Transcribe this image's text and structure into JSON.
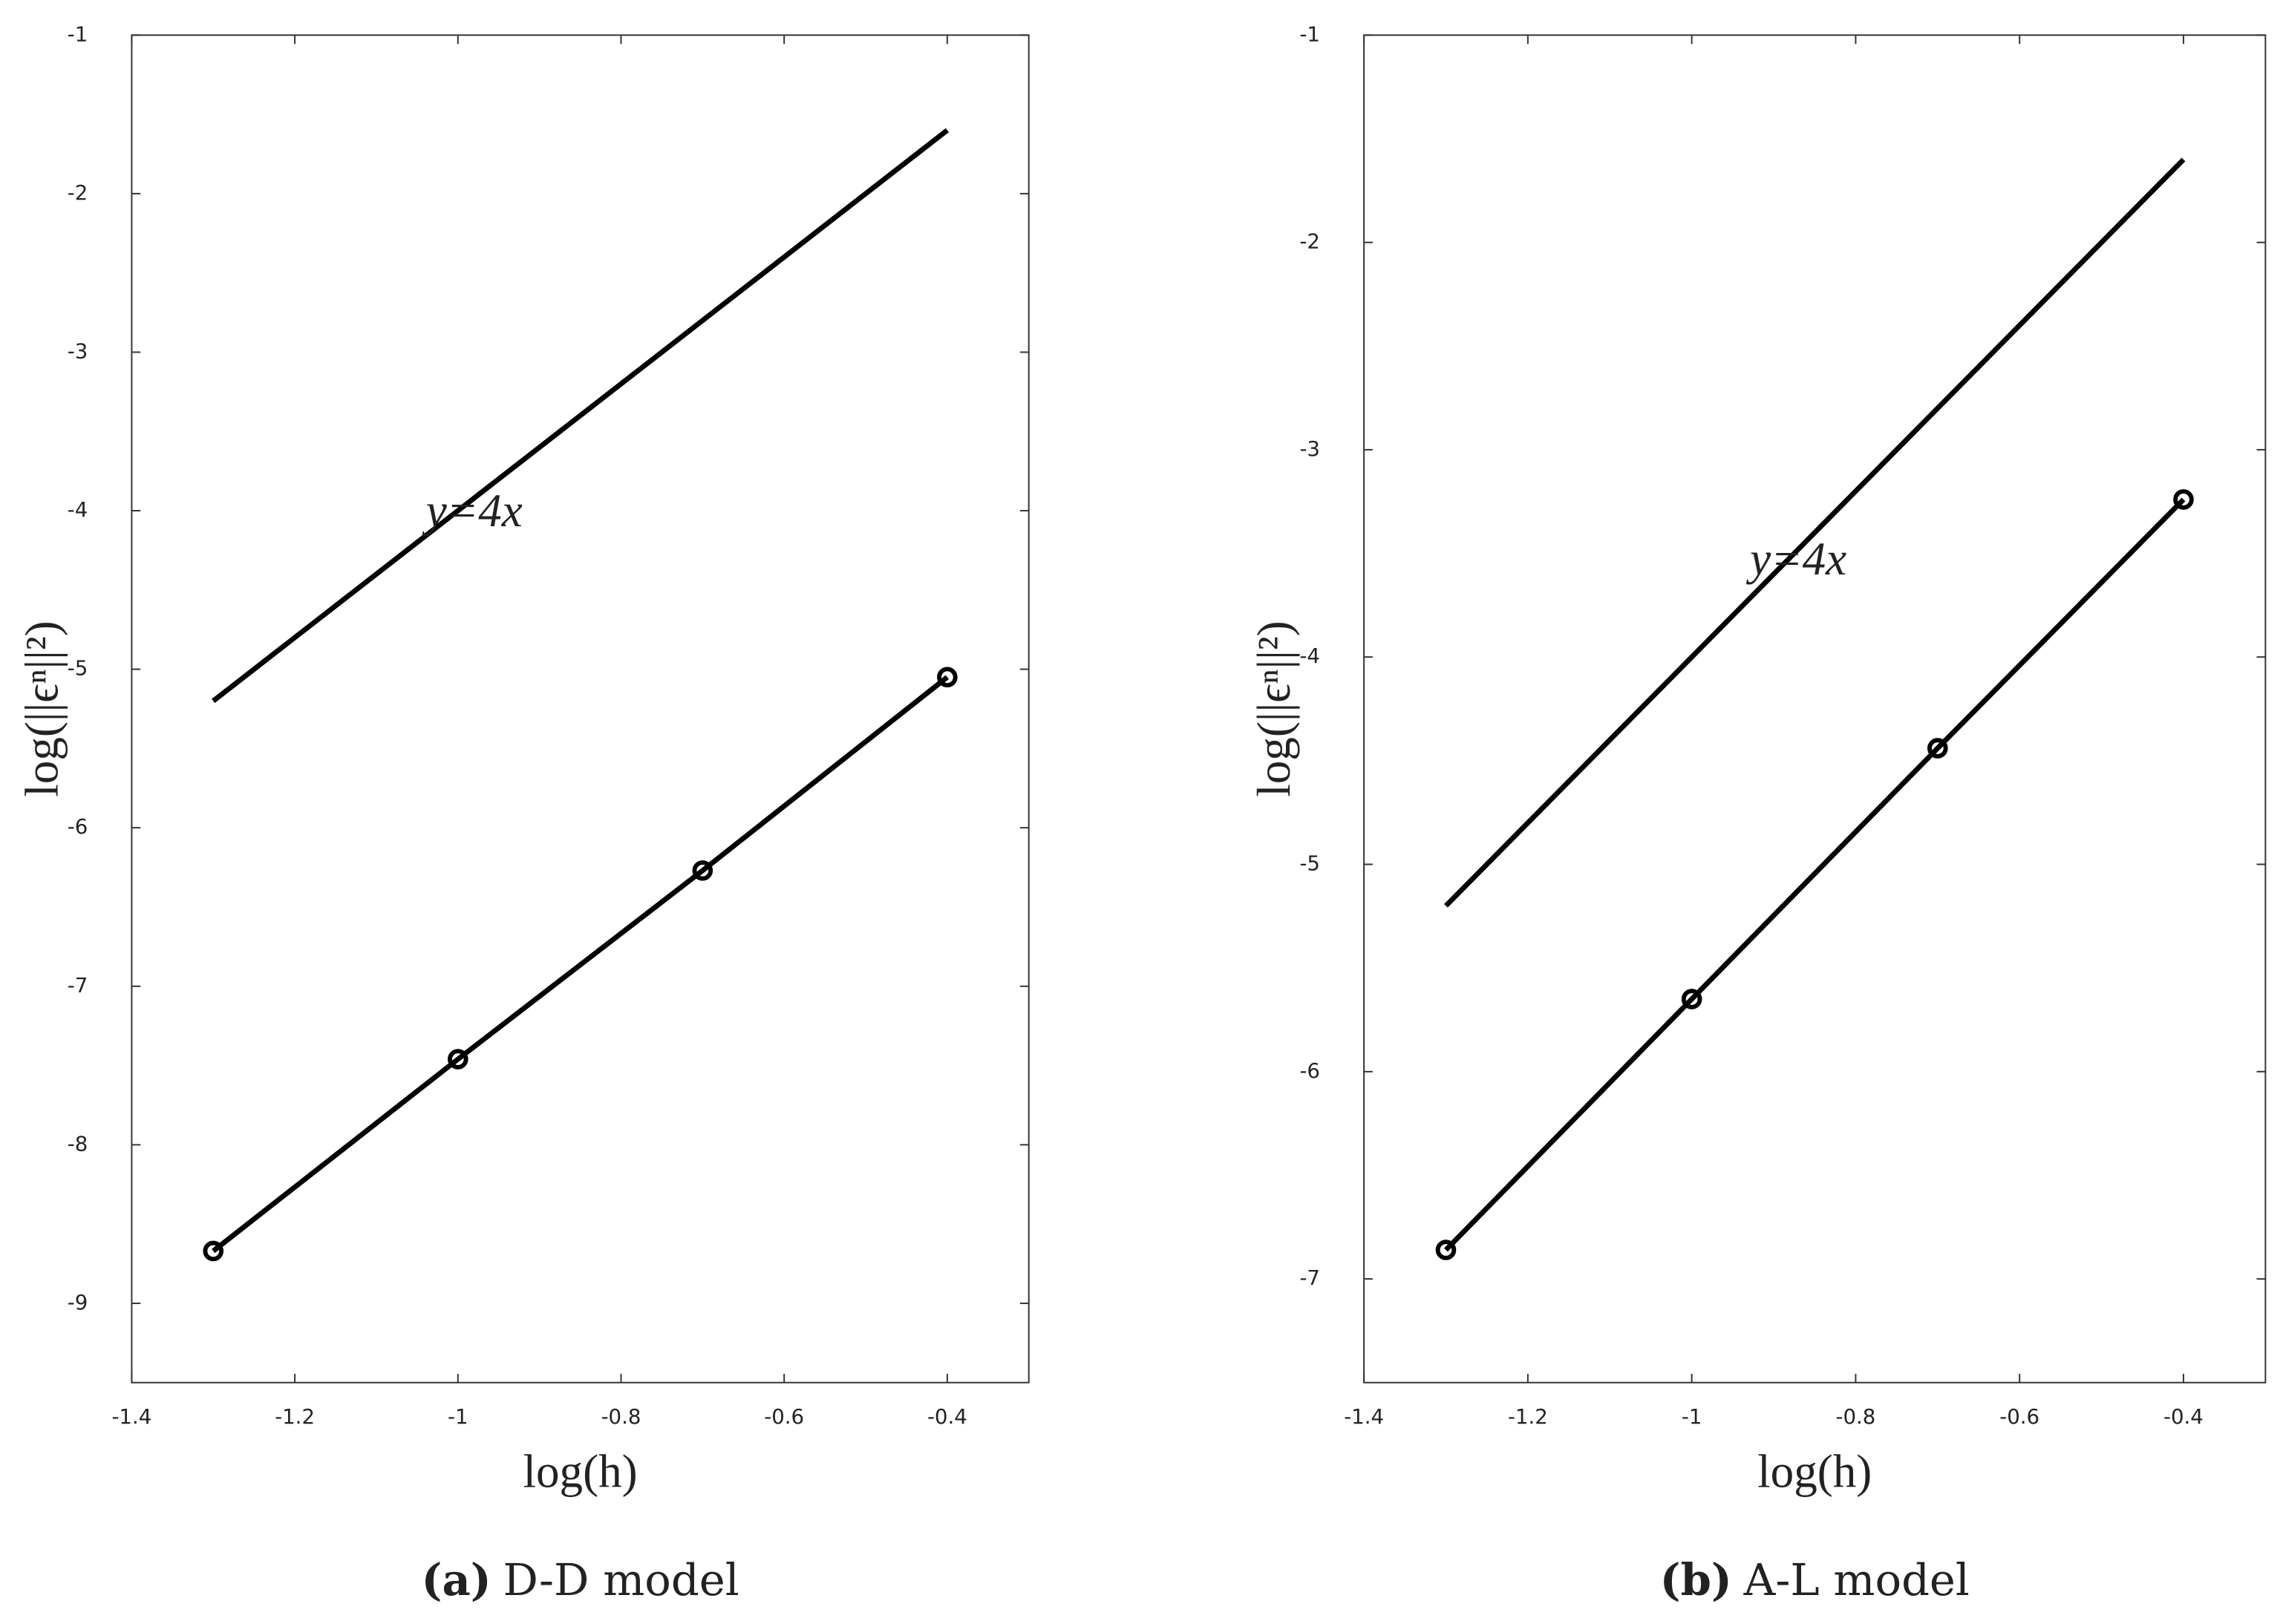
{
  "chart_data": [
    {
      "type": "line",
      "caption_label": "(a)",
      "caption": "D-D model",
      "xlabel": "log(h)",
      "ylabel": "log(||ϵⁿ||²)",
      "xlim": [
        -1.4,
        -0.3
      ],
      "ylim": [
        -9.5,
        -1
      ],
      "xticks": [
        -1.4,
        -1.2,
        -1,
        -0.8,
        -0.6,
        -0.4
      ],
      "yticks": [
        -9,
        -8,
        -7,
        -6,
        -5,
        -4,
        -3,
        -2,
        -1
      ],
      "series": [
        {
          "color": "#000000",
          "x": [
            -1.3,
            -0.4
          ],
          "values": [
            -5.2,
            -1.6
          ]
        },
        {
          "color": "#000000",
          "marker": "o",
          "x": [
            -1.3,
            -1,
            -0.7,
            -0.4
          ],
          "values": [
            -8.67,
            -7.46,
            -6.27,
            -5.05
          ]
        }
      ],
      "annotations": [
        {
          "text": "y=4x",
          "x": -0.98,
          "y": -4.03
        }
      ]
    },
    {
      "type": "line",
      "caption_label": "(b)",
      "caption": "A-L model",
      "xlabel": "log(h)",
      "ylabel": "log(||ϵⁿ||²)",
      "xlim": [
        -1.4,
        -0.3
      ],
      "ylim": [
        -7.5,
        -1
      ],
      "xticks": [
        -1.4,
        -1.2,
        -1,
        -0.8,
        -0.6,
        -0.4
      ],
      "yticks": [
        -7,
        -6,
        -5,
        -4,
        -3,
        -2,
        -1
      ],
      "series": [
        {
          "color": "#000000",
          "x": [
            -1.3,
            -0.4
          ],
          "values": [
            -5.2,
            -1.6
          ]
        },
        {
          "color": "#000000",
          "marker": "o",
          "x": [
            -1.3,
            -1,
            -0.7,
            -0.4
          ],
          "values": [
            -6.86,
            -5.65,
            -4.44,
            -3.24
          ]
        }
      ],
      "annotations": [
        {
          "text": "y=4x",
          "x": -0.87,
          "y": -3.55
        }
      ]
    }
  ]
}
